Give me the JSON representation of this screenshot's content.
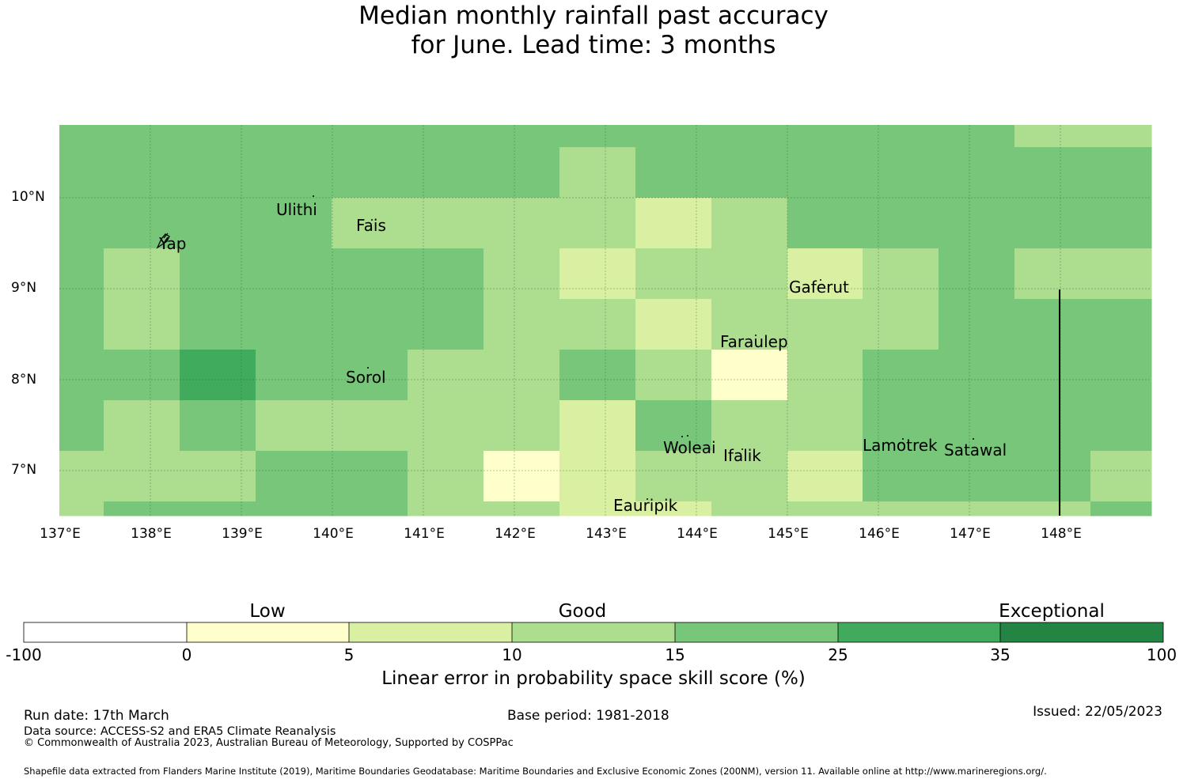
{
  "title": {
    "line1": "Median monthly rainfall past accuracy",
    "line2": "for June. Lead time: 3 months"
  },
  "map": {
    "lat_ticks": [
      "10°N",
      "9°N",
      "8°N",
      "7°N"
    ],
    "lon_ticks": [
      "137°E",
      "138°E",
      "139°E",
      "140°E",
      "141°E",
      "142°E",
      "143°E",
      "144°E",
      "145°E",
      "146°E",
      "147°E",
      "148°E"
    ],
    "places": {
      "ulithi": "Ulithi",
      "fais": "Fais",
      "yap": "Yap",
      "gaferut": "Gaferut",
      "faraulep": "Faraulep",
      "sorol": "Sorol",
      "woleai": "Woleai",
      "ifalik": "Ifalik",
      "lamotrek": "Lamotrek",
      "satawal": "Satawal",
      "eauripik": "Eauripik"
    },
    "colors": {
      "c0": "#ffffcc",
      "c1": "#d9f0a3",
      "c2": "#addd8e",
      "c3": "#78c679",
      "c4": "#41ab5d",
      "c5": "#238443",
      "grid": "#2a5a2a"
    }
  },
  "colorbar": {
    "categories": {
      "low": "Low",
      "good": "Good",
      "exceptional": "Exceptional"
    },
    "ticks": [
      "-100",
      "0",
      "5",
      "10",
      "15",
      "25",
      "35",
      "100"
    ],
    "colors": [
      "#ffffff",
      "#ffffcc",
      "#d9f0a3",
      "#addd8e",
      "#78c679",
      "#41ab5d",
      "#238443"
    ],
    "axis_label": "Linear error in probability space skill score (%)"
  },
  "footer": {
    "run_date": "Run date: 17th March",
    "base_period": "Base period: 1981-2018",
    "issued": "Issued: 22/05/2023",
    "data_source": "Data source: ACCESS-S2 and ERA5 Climate Reanalysis",
    "copyright": "© Commonwealth of Australia 2023, Australian Bureau of Meteorology, Supported by COSPPac",
    "shapefile": "Shapefile data extracted from Flanders Marine Institute (2019), Maritime Boundaries Geodatabase: Maritime Boundaries and Exclusive Economic Zones (200NM), version 11. Available online at http://www.marineregions.org/."
  }
}
